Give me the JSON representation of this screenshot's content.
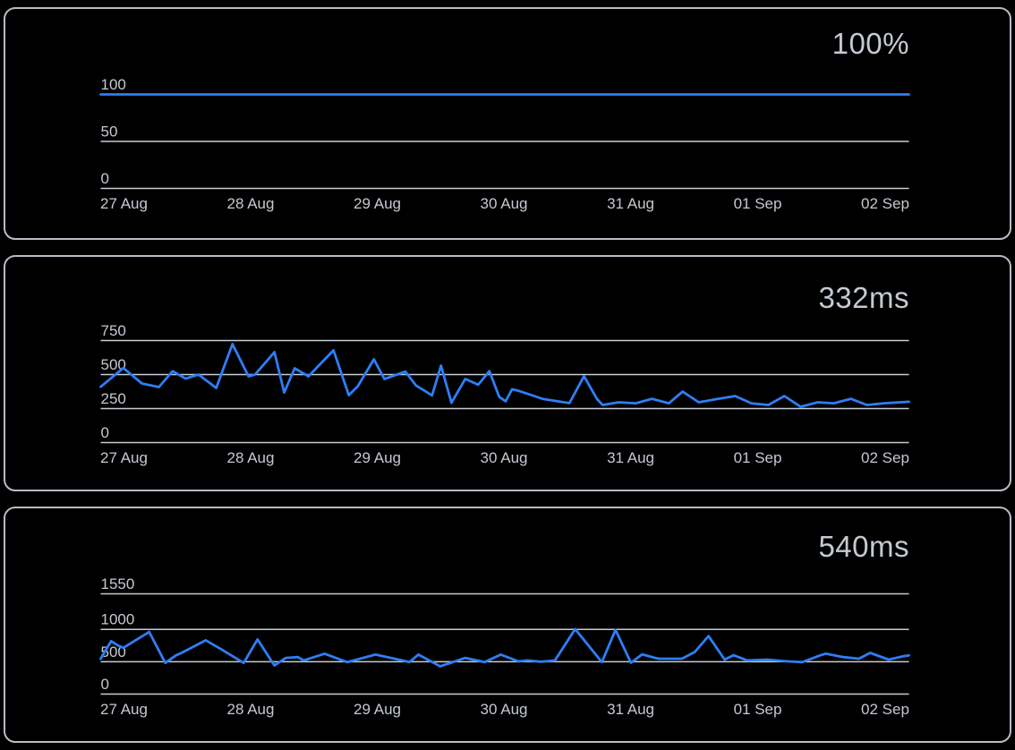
{
  "theme": {
    "background": "#000000",
    "panel_background": "#000000",
    "panel_border_color": "#b6bcc6",
    "grid_color": "#c7ccd4",
    "text_color": "#c4c9d2",
    "line_color": "#2e7ef5"
  },
  "x_axis": {
    "labels": [
      "27 Aug",
      "28 Aug",
      "29 Aug",
      "30 Aug",
      "31 Aug",
      "01 Sep",
      "02 Sep"
    ]
  },
  "chart_data": [
    {
      "type": "line",
      "headline": "100%",
      "y_ticks": [
        0,
        50,
        100
      ],
      "y_max": 100,
      "ylim": [
        0,
        100
      ],
      "grid": true,
      "points": [
        [
          0.0,
          100
        ],
        [
          1.0,
          100
        ]
      ]
    },
    {
      "type": "line",
      "headline": "332ms",
      "y_ticks": [
        0,
        250,
        500,
        750
      ],
      "y_max": 750,
      "ylim": [
        0,
        750
      ],
      "grid": true,
      "points": [
        [
          0.0,
          410
        ],
        [
          0.028,
          548
        ],
        [
          0.051,
          434
        ],
        [
          0.072,
          408
        ],
        [
          0.089,
          525
        ],
        [
          0.105,
          470
        ],
        [
          0.121,
          500
        ],
        [
          0.143,
          401
        ],
        [
          0.163,
          724
        ],
        [
          0.183,
          487
        ],
        [
          0.191,
          500
        ],
        [
          0.215,
          665
        ],
        [
          0.227,
          368
        ],
        [
          0.24,
          546
        ],
        [
          0.257,
          487
        ],
        [
          0.288,
          678
        ],
        [
          0.307,
          349
        ],
        [
          0.318,
          414
        ],
        [
          0.338,
          612
        ],
        [
          0.351,
          467
        ],
        [
          0.377,
          522
        ],
        [
          0.39,
          420
        ],
        [
          0.41,
          347
        ],
        [
          0.421,
          566
        ],
        [
          0.434,
          292
        ],
        [
          0.451,
          468
        ],
        [
          0.467,
          425
        ],
        [
          0.481,
          525
        ],
        [
          0.493,
          337
        ],
        [
          0.501,
          303
        ],
        [
          0.509,
          392
        ],
        [
          0.517,
          380
        ],
        [
          0.547,
          321
        ],
        [
          0.569,
          300
        ],
        [
          0.58,
          290
        ],
        [
          0.598,
          488
        ],
        [
          0.614,
          321
        ],
        [
          0.621,
          276
        ],
        [
          0.641,
          296
        ],
        [
          0.662,
          289
        ],
        [
          0.682,
          322
        ],
        [
          0.703,
          289
        ],
        [
          0.72,
          375
        ],
        [
          0.74,
          296
        ],
        [
          0.764,
          322
        ],
        [
          0.785,
          342
        ],
        [
          0.805,
          289
        ],
        [
          0.826,
          276
        ],
        [
          0.846,
          342
        ],
        [
          0.866,
          263
        ],
        [
          0.887,
          296
        ],
        [
          0.907,
          289
        ],
        [
          0.928,
          322
        ],
        [
          0.948,
          276
        ],
        [
          0.969,
          289
        ],
        [
          0.989,
          296
        ],
        [
          1.0,
          300
        ]
      ]
    },
    {
      "type": "line",
      "headline": "540ms",
      "y_ticks": [
        0,
        500,
        1000,
        1550
      ],
      "y_max": 1550,
      "ylim": [
        0,
        1550
      ],
      "grid": true,
      "points": [
        [
          0.0,
          546
        ],
        [
          0.013,
          818
        ],
        [
          0.021,
          754
        ],
        [
          0.028,
          716
        ],
        [
          0.06,
          960
        ],
        [
          0.08,
          481
        ],
        [
          0.093,
          598
        ],
        [
          0.1,
          637
        ],
        [
          0.13,
          832
        ],
        [
          0.148,
          702
        ],
        [
          0.177,
          481
        ],
        [
          0.194,
          845
        ],
        [
          0.215,
          442
        ],
        [
          0.229,
          559
        ],
        [
          0.244,
          572
        ],
        [
          0.251,
          520
        ],
        [
          0.277,
          624
        ],
        [
          0.305,
          494
        ],
        [
          0.34,
          611
        ],
        [
          0.373,
          520
        ],
        [
          0.382,
          494
        ],
        [
          0.393,
          610
        ],
        [
          0.42,
          429
        ],
        [
          0.451,
          559
        ],
        [
          0.475,
          494
        ],
        [
          0.495,
          611
        ],
        [
          0.517,
          505
        ],
        [
          0.528,
          520
        ],
        [
          0.545,
          500
        ],
        [
          0.562,
          520
        ],
        [
          0.587,
          1005
        ],
        [
          0.62,
          494
        ],
        [
          0.637,
          992
        ],
        [
          0.656,
          485
        ],
        [
          0.67,
          615
        ],
        [
          0.686,
          559
        ],
        [
          0.691,
          546
        ],
        [
          0.719,
          546
        ],
        [
          0.735,
          650
        ],
        [
          0.752,
          897
        ],
        [
          0.772,
          533
        ],
        [
          0.783,
          600
        ],
        [
          0.8,
          520
        ],
        [
          0.824,
          533
        ],
        [
          0.849,
          507
        ],
        [
          0.868,
          494
        ],
        [
          0.89,
          598
        ],
        [
          0.897,
          624
        ],
        [
          0.919,
          572
        ],
        [
          0.938,
          546
        ],
        [
          0.952,
          637
        ],
        [
          0.975,
          533
        ],
        [
          0.993,
          585
        ],
        [
          1.0,
          598
        ]
      ]
    }
  ]
}
